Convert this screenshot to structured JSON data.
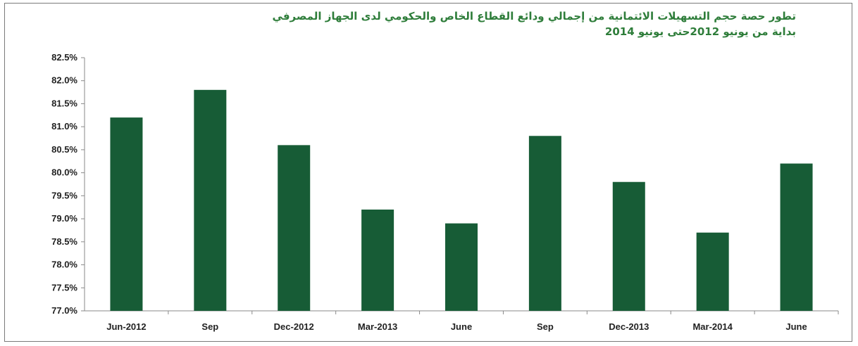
{
  "chart_data": {
    "type": "bar",
    "title": "تطور حصة حجم التسهيلات الائتمانية من إجمالي ودائع القطاع الخاص والحكومي لدى الجهاز المصرفي",
    "subtitle": "بداية من يونيو 2012حتى يونيو 2014",
    "categories": [
      "Jun-2012",
      "Sep",
      "Dec-2012",
      "Mar-2013",
      "June",
      "Sep",
      "Dec-2013",
      "Mar-2014",
      "June"
    ],
    "values": [
      81.2,
      81.8,
      80.6,
      79.2,
      78.9,
      80.8,
      79.8,
      78.7,
      80.2
    ],
    "ylim": [
      77.0,
      82.5
    ],
    "yticks": [
      "77.0%",
      "77.5%",
      "78.0%",
      "78.5%",
      "79.0%",
      "79.5%",
      "80.0%",
      "80.5%",
      "81.0%",
      "81.5%",
      "82.0%",
      "82.5%"
    ],
    "xlabel": "",
    "ylabel": "",
    "grid": false,
    "bar_color": "#175c36",
    "title_color": "#2e7d3a"
  }
}
